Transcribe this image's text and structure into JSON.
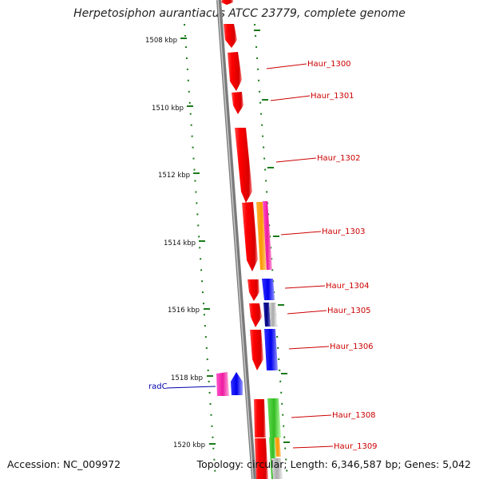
{
  "title": "Herpetosiphon aurantiacus ATCC 23779, complete genome",
  "footer": {
    "accession": "Accession: NC_009972",
    "topology": "Topology: circular; Length: 6,346,587 bp; Genes: 5,042"
  },
  "ticks": [
    "1508 kbp",
    "1510 kbp",
    "1512 kbp",
    "1514 kbp",
    "1516 kbp",
    "1518 kbp",
    "1520 kbp"
  ],
  "gene_labels": [
    {
      "name": "Haur_1300",
      "color": "#cc0000"
    },
    {
      "name": "Haur_1301",
      "color": "#cc0000"
    },
    {
      "name": "Haur_1302",
      "color": "#cc0000"
    },
    {
      "name": "Haur_1303",
      "color": "#cc0000"
    },
    {
      "name": "Haur_1304",
      "color": "#cc0000"
    },
    {
      "name": "Haur_1305",
      "color": "#cc0000"
    },
    {
      "name": "Haur_1306",
      "color": "#cc0000"
    },
    {
      "name": "Haur_1308",
      "color": "#cc0000"
    },
    {
      "name": "Haur_1309",
      "color": "#cc0000"
    },
    {
      "name": "radC",
      "color": "#0000aa"
    }
  ],
  "colors": {
    "backbone": "#8a8a8a",
    "tick": "#1a7a1a",
    "red": "#ee1111",
    "orange": "#ff9900",
    "magenta": "#ee22aa",
    "blue": "#0000ee",
    "navy": "#000080",
    "green": "#44cc33",
    "gray": "#bbbbbb"
  }
}
